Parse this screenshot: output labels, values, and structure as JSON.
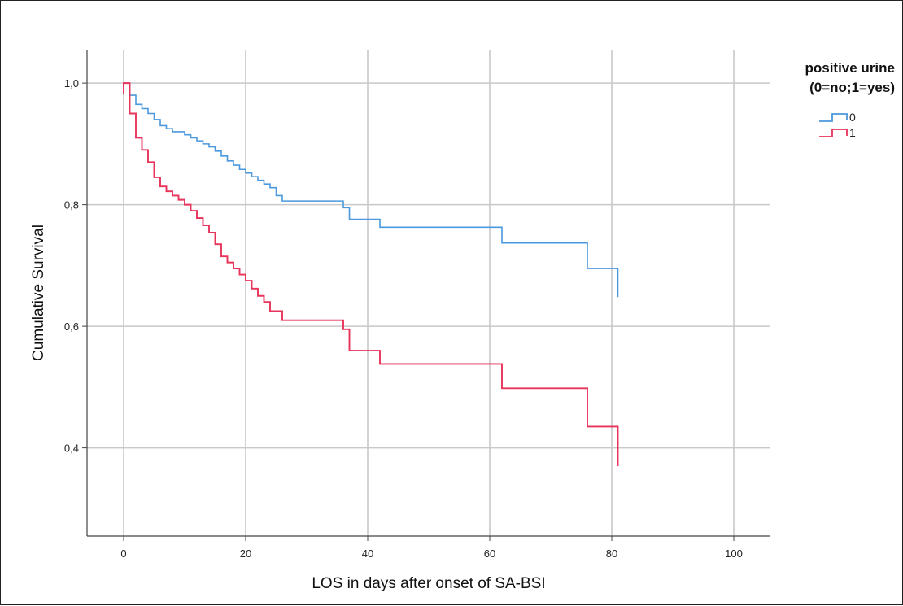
{
  "chart_data": {
    "type": "line",
    "step": true,
    "title": "",
    "xlabel": "LOS in days after onset of SA-BSI",
    "ylabel": "Cumulative Survival",
    "xlim": [
      -6,
      106
    ],
    "ylim": [
      0.255,
      1.055
    ],
    "grid": true,
    "x_ticks": [
      0,
      20,
      40,
      60,
      80,
      100
    ],
    "x_tick_labels": [
      "0",
      "20",
      "40",
      "60",
      "80",
      "100"
    ],
    "y_ticks": [
      0.4,
      0.6,
      0.8,
      1.0
    ],
    "y_tick_labels": [
      "0,4",
      "0,6",
      "0,8",
      "1,0"
    ],
    "legend": {
      "position": "top-right",
      "title_lines": [
        "positive urine",
        "(0=no;1=yes)"
      ],
      "entries": [
        "0",
        "1"
      ]
    },
    "series": [
      {
        "name": "0",
        "color": "#4a98de",
        "x": [
          0,
          1,
          2,
          3,
          4,
          5,
          6,
          7,
          8,
          10,
          11,
          12,
          13,
          14,
          15,
          16,
          17,
          18,
          19,
          20,
          21,
          22,
          23,
          24,
          25,
          26,
          36,
          37,
          42,
          62,
          76,
          81
        ],
        "y": [
          1.0,
          0.98,
          0.965,
          0.958,
          0.95,
          0.94,
          0.93,
          0.925,
          0.92,
          0.915,
          0.91,
          0.905,
          0.9,
          0.895,
          0.888,
          0.88,
          0.872,
          0.865,
          0.858,
          0.852,
          0.846,
          0.84,
          0.834,
          0.828,
          0.815,
          0.806,
          0.795,
          0.776,
          0.763,
          0.737,
          0.695,
          0.648
        ]
      },
      {
        "name": "1",
        "color": "#e8335a",
        "x": [
          0,
          1,
          2,
          3,
          4,
          5,
          6,
          7,
          8,
          9,
          10,
          11,
          12,
          13,
          14,
          15,
          16,
          17,
          18,
          19,
          20,
          21,
          22,
          23,
          24,
          26,
          36,
          37,
          42,
          62,
          76,
          81
        ],
        "y": [
          1.0,
          0.95,
          0.91,
          0.89,
          0.87,
          0.845,
          0.83,
          0.822,
          0.815,
          0.808,
          0.8,
          0.79,
          0.778,
          0.766,
          0.754,
          0.735,
          0.715,
          0.705,
          0.695,
          0.685,
          0.675,
          0.662,
          0.65,
          0.64,
          0.625,
          0.61,
          0.595,
          0.56,
          0.538,
          0.498,
          0.435,
          0.37
        ]
      }
    ]
  }
}
